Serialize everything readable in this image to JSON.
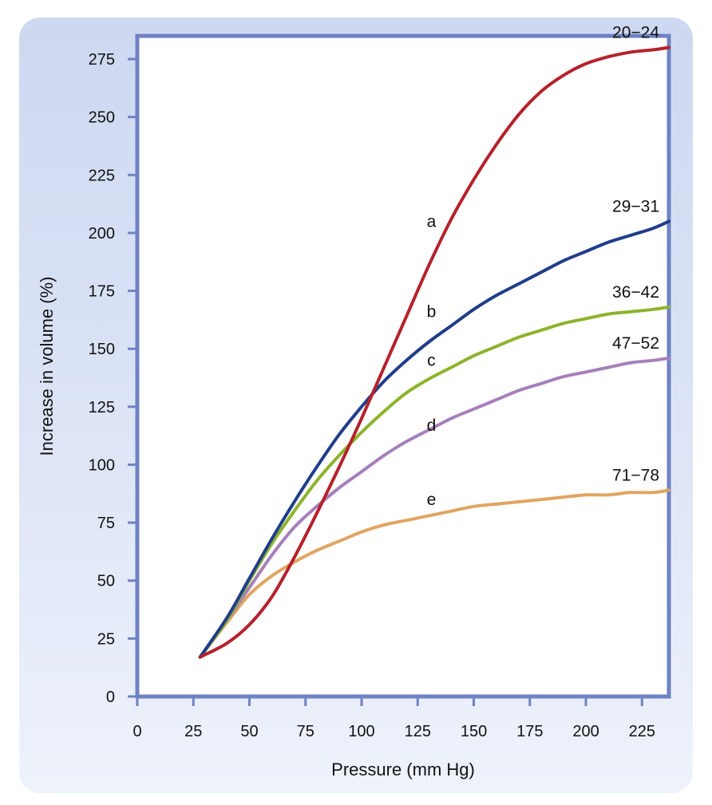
{
  "chart_data": {
    "type": "line",
    "title": "",
    "xlabel": "Pressure (mm Hg)",
    "ylabel": "Increase in volume (%)",
    "xlim": [
      0,
      237
    ],
    "ylim": [
      0,
      285
    ],
    "xticks": [
      0,
      25,
      50,
      75,
      100,
      125,
      150,
      175,
      200,
      225
    ],
    "yticks": [
      0,
      25,
      50,
      75,
      100,
      125,
      150,
      175,
      200,
      225,
      250,
      275
    ],
    "series": [
      {
        "name": "a",
        "age": "20−24",
        "color": "#b5212b",
        "x": [
          28,
          40,
          50,
          60,
          70,
          80,
          90,
          100,
          110,
          120,
          130,
          140,
          150,
          160,
          170,
          180,
          190,
          200,
          210,
          220,
          230,
          237
        ],
        "y": [
          17,
          23,
          31,
          43,
          60,
          79,
          99,
          120,
          142,
          164,
          186,
          206,
          223,
          238,
          251,
          261,
          268,
          273,
          276,
          278,
          279,
          280
        ],
        "label_at": [
          140,
          205
        ]
      },
      {
        "name": "b",
        "age": "29−31",
        "color": "#1f3d8a",
        "x": [
          28,
          40,
          50,
          60,
          70,
          80,
          90,
          100,
          110,
          120,
          130,
          140,
          150,
          160,
          170,
          180,
          190,
          200,
          210,
          220,
          230,
          237
        ],
        "y": [
          17,
          34,
          51,
          68,
          84,
          99,
          113,
          125,
          136,
          145,
          153,
          160,
          167,
          173,
          178,
          183,
          188,
          192,
          196,
          199,
          202,
          205
        ],
        "label_at": [
          140,
          166
        ]
      },
      {
        "name": "c",
        "age": "36−42",
        "color": "#8db32c",
        "x": [
          28,
          40,
          50,
          60,
          70,
          80,
          90,
          100,
          110,
          120,
          130,
          140,
          150,
          160,
          170,
          180,
          190,
          200,
          210,
          220,
          230,
          237
        ],
        "y": [
          17,
          33,
          50,
          66,
          80,
          93,
          104,
          114,
          123,
          131,
          137,
          142,
          147,
          151,
          155,
          158,
          161,
          163,
          165,
          166,
          167,
          168
        ],
        "label_at": [
          140,
          145
        ]
      },
      {
        "name": "d",
        "age": "47−52",
        "color": "#a67fbb",
        "x": [
          28,
          40,
          50,
          60,
          70,
          80,
          90,
          100,
          110,
          120,
          130,
          140,
          150,
          160,
          170,
          180,
          190,
          200,
          210,
          220,
          230,
          237
        ],
        "y": [
          17,
          33,
          47,
          61,
          73,
          82,
          90,
          97,
          104,
          110,
          115,
          120,
          124,
          128,
          132,
          135,
          138,
          140,
          142,
          144,
          145,
          146
        ],
        "label_at": [
          140,
          117
        ]
      },
      {
        "name": "e",
        "age": "71−78",
        "color": "#e0a561",
        "x": [
          28,
          40,
          50,
          60,
          70,
          80,
          90,
          100,
          110,
          120,
          130,
          140,
          150,
          160,
          170,
          180,
          190,
          200,
          210,
          220,
          230,
          237
        ],
        "y": [
          17,
          32,
          44,
          52,
          58,
          63,
          67,
          71,
          74,
          76,
          78,
          80,
          82,
          83,
          84,
          85,
          86,
          87,
          87,
          88,
          88,
          89
        ],
        "label_at": [
          140,
          85
        ]
      }
    ]
  }
}
